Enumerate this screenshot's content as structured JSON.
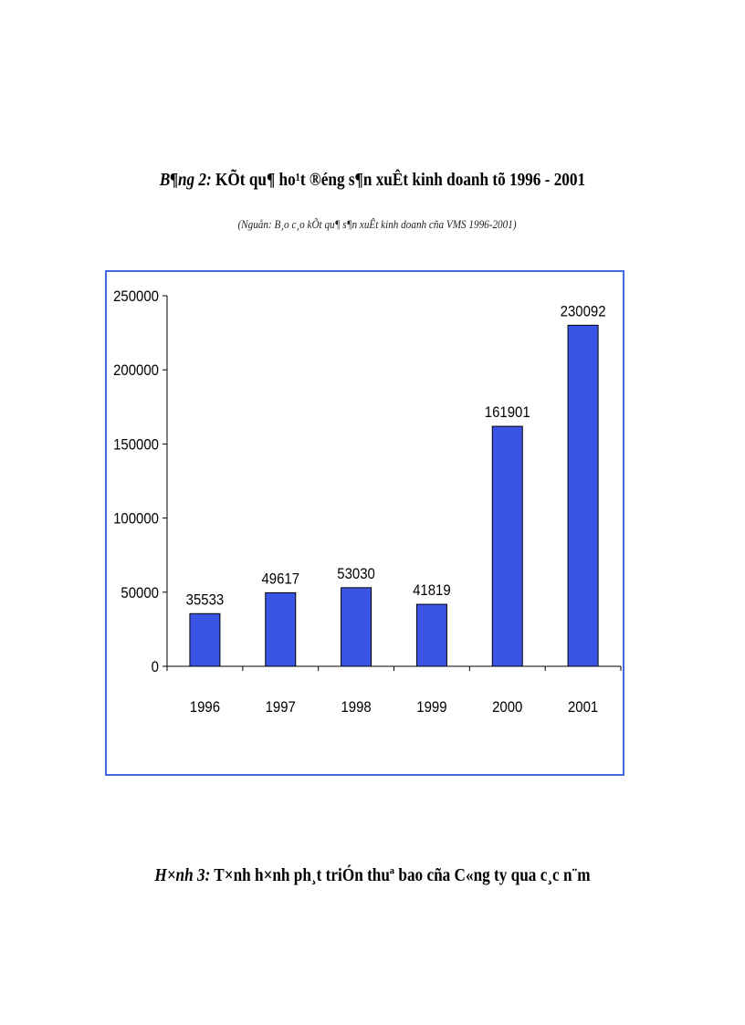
{
  "header": {
    "title_lead": "B¶ng 2:",
    "title_text": "KÕt qu¶ ho¹t ®éng s¶n xuÊt kinh doanh tõ 1996 - 2001",
    "source": "(Nguån: B¸o c¸o kÕt qu¶ s¶n xuÊt kinh doanh cña VMS 1996-2001)"
  },
  "figure_caption": {
    "lead": "H×nh 3:",
    "text": "T×nh h×nh ph¸t triÓn thuª bao cña C«ng ty qua c¸c n¨m"
  },
  "colors": {
    "bar": "#3a55e6",
    "frame": "#4169e1"
  },
  "chart_data": {
    "type": "bar",
    "categories": [
      "1996",
      "1997",
      "1998",
      "1999",
      "2000",
      "2001"
    ],
    "values": [
      35533,
      49617,
      53030,
      41819,
      161901,
      230092
    ],
    "ylim": [
      0,
      250000
    ],
    "yticks": [
      0,
      50000,
      100000,
      150000,
      200000,
      250000
    ],
    "title": "",
    "xlabel": "",
    "ylabel": "",
    "grid": false,
    "legend": "none",
    "data_labels": true
  }
}
